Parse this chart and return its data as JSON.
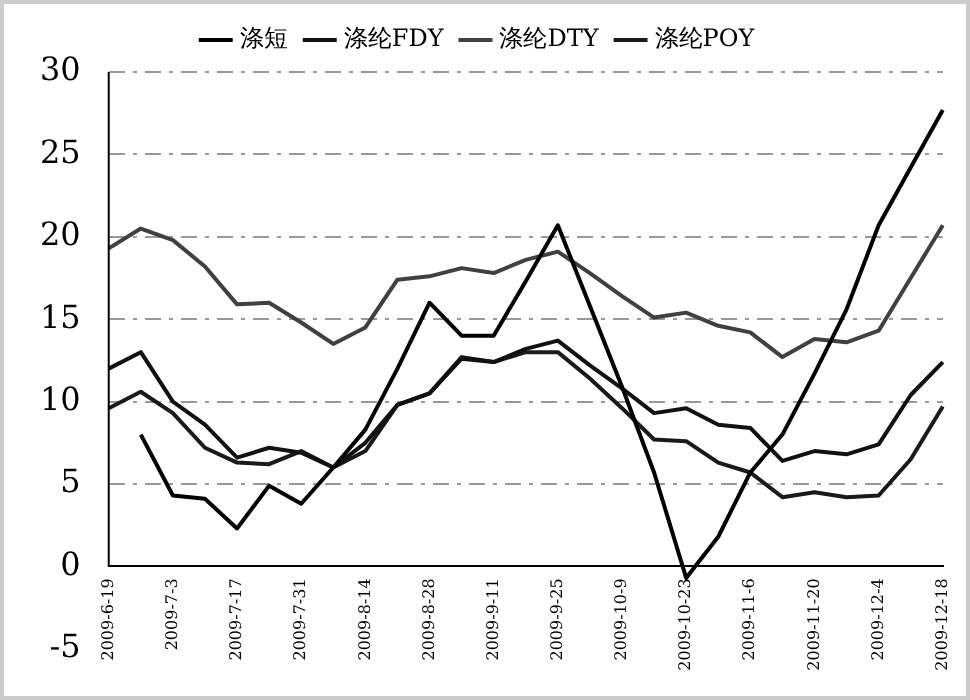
{
  "chart_data": {
    "type": "line",
    "categories": [
      "2009-6-19",
      null,
      "2009-7-3",
      null,
      "2009-7-17",
      null,
      "2009-7-31",
      null,
      "2009-8-14",
      null,
      "2009-8-28",
      null,
      "2009-9-11",
      null,
      "2009-9-25",
      null,
      "2009-10-9",
      null,
      "2009-10-23",
      null,
      "2009-11-6",
      null,
      "2009-11-20",
      null,
      "2009-12-4",
      null,
      "2009-12-18"
    ],
    "series": [
      {
        "name": "涤短",
        "color": "#000000",
        "values": [
          null,
          8.0,
          4.3,
          4.1,
          2.3,
          4.9,
          3.8,
          6.0,
          8.3,
          12.0,
          16.0,
          14.0,
          14.0,
          17.3,
          20.7,
          15.8,
          10.9,
          5.7,
          -0.7,
          1.8,
          5.7,
          8.0,
          11.7,
          15.6,
          20.7,
          24.2,
          27.7
        ]
      },
      {
        "name": "涤纶FDY",
        "color": "#111111",
        "values": [
          12.0,
          13.0,
          10.0,
          8.6,
          6.6,
          7.2,
          6.9,
          6.0,
          7.5,
          9.8,
          10.5,
          12.6,
          12.4,
          13.2,
          13.7,
          12.2,
          10.8,
          9.3,
          9.6,
          8.6,
          8.4,
          6.4,
          7.0,
          6.8,
          7.4,
          10.4,
          12.4
        ]
      },
      {
        "name": "涤纶DTY",
        "color": "#404040",
        "values": [
          19.3,
          20.5,
          19.8,
          18.2,
          15.9,
          16.0,
          14.8,
          13.5,
          14.5,
          17.4,
          17.6,
          18.1,
          17.8,
          18.6,
          19.1,
          17.8,
          16.4,
          15.1,
          15.4,
          14.6,
          14.2,
          12.7,
          13.8,
          13.6,
          14.3,
          17.5,
          20.7
        ]
      },
      {
        "name": "涤纶POY",
        "color": "#1a1a1a",
        "values": [
          9.6,
          10.6,
          9.3,
          7.2,
          6.3,
          6.2,
          7.0,
          6.0,
          7.0,
          9.8,
          10.5,
          12.7,
          12.4,
          13.0,
          13.0,
          11.4,
          9.6,
          7.7,
          7.6,
          6.3,
          5.7,
          4.2,
          4.5,
          4.2,
          4.3,
          6.5,
          9.7
        ]
      }
    ],
    "ylim": [
      -5,
      30
    ],
    "yticks": [
      -5,
      0,
      5,
      10,
      15,
      20,
      25,
      30
    ],
    "grid": "y",
    "legend": "top",
    "marker": "none",
    "line_style": "solid"
  }
}
